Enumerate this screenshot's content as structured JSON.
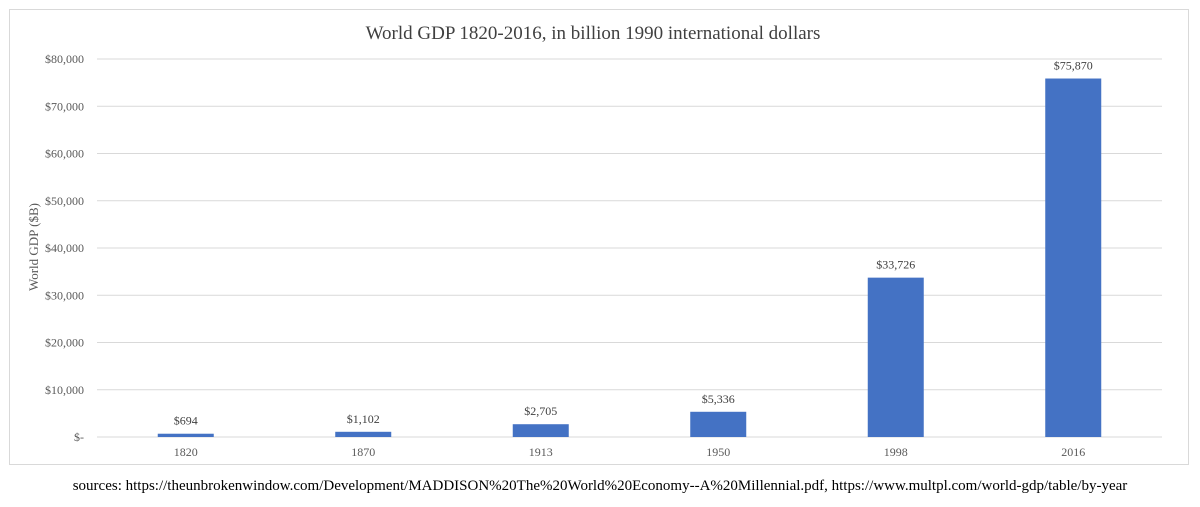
{
  "chart_data": {
    "type": "bar",
    "title": "World GDP 1820-2016, in billion 1990 international dollars",
    "xlabel": "",
    "ylabel": "World GDP ($B)",
    "categories": [
      "1820",
      "1870",
      "1913",
      "1950",
      "1998",
      "2016"
    ],
    "values": [
      694,
      1102,
      2705,
      5336,
      33726,
      75870
    ],
    "data_labels": [
      "$694",
      "$1,102",
      "$2,705",
      "$5,336",
      "$33,726",
      "$75,870"
    ],
    "ylim": [
      0,
      80000
    ],
    "yticks": [
      0,
      10000,
      20000,
      30000,
      40000,
      50000,
      60000,
      70000,
      80000
    ],
    "ytick_labels": [
      "$-",
      "$10,000",
      "$20,000",
      "$30,000",
      "$40,000",
      "$50,000",
      "$60,000",
      "$70,000",
      "$80,000"
    ],
    "grid": true,
    "legend": "none",
    "bar_color": "#4472c4"
  },
  "footer": {
    "sources": "sources: https://theunbrokenwindow.com/Development/MADDISON%20The%20World%20Economy--A%20Millennial.pdf, https://www.multpl.com/world-gdp/table/by-year"
  },
  "colors": {
    "bar": "#4472c4",
    "grid": "#d9d9d9",
    "text": "#595959",
    "title": "#404040"
  }
}
